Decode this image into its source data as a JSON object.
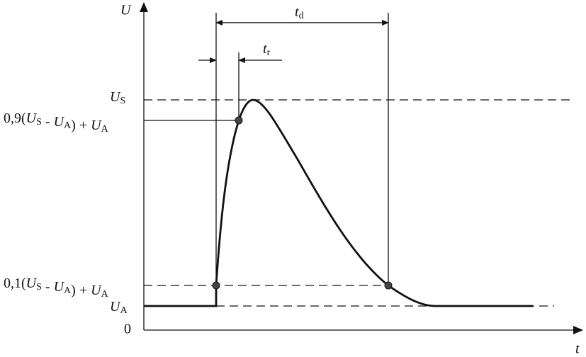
{
  "axes": {
    "y_label": "U",
    "x_label": "t",
    "origin": "0"
  },
  "labels": {
    "td": [
      {
        "text": "t",
        "sub": "d"
      }
    ],
    "tr": [
      {
        "text": "t",
        "sub": "r"
      }
    ],
    "us": [
      {
        "text": "U",
        "sub": "S"
      }
    ],
    "ua": [
      {
        "text": "U",
        "sub": "A"
      }
    ],
    "level90": [
      {
        "text": "0,9("
      },
      {
        "text": "U",
        "sub": "S"
      },
      {
        "text": " - "
      },
      {
        "text": "U",
        "sub": "A"
      },
      {
        "text": ") + "
      },
      {
        "text": "U",
        "sub": "A"
      }
    ],
    "level10": [
      {
        "text": "0,1("
      },
      {
        "text": "U",
        "sub": "S"
      },
      {
        "text": " - "
      },
      {
        "text": "U",
        "sub": "A"
      },
      {
        "text": ") + "
      },
      {
        "text": "U",
        "sub": "A"
      }
    ]
  }
}
